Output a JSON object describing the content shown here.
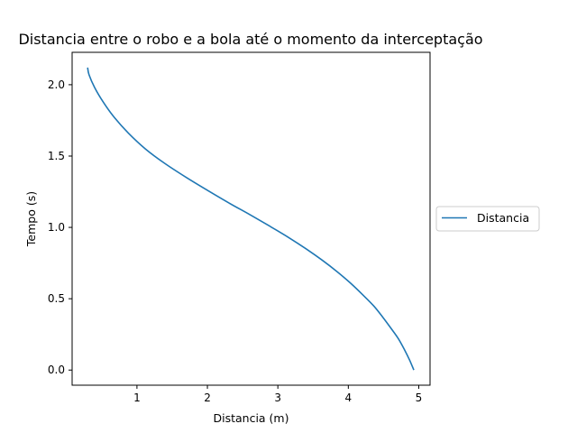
{
  "chart_data": {
    "type": "line",
    "title": "Distancia entre o robo e a bola até o momento da interceptação",
    "xlabel": "Distancia (m)",
    "ylabel": "Tempo (s)",
    "xlim": [
      0.08,
      5.16
    ],
    "ylim": [
      -0.106,
      2.227
    ],
    "xticks": [
      1,
      2,
      3,
      4,
      5
    ],
    "yticks": [
      0.0,
      0.5,
      1.0,
      1.5,
      2.0
    ],
    "xtick_labels": [
      "1",
      "2",
      "3",
      "4",
      "5"
    ],
    "ytick_labels": [
      "0.0",
      "0.5",
      "1.0",
      "1.5",
      "2.0"
    ],
    "grid": false,
    "legend": {
      "placement": "right-outside",
      "entries": [
        "Distancia"
      ]
    },
    "colors": {
      "series": "#1f77b4"
    },
    "series": [
      {
        "name": "Distancia",
        "x": [
          4.93,
          4.87,
          4.8,
          4.71,
          4.61,
          4.49,
          4.36,
          4.2,
          4.03,
          3.84,
          3.63,
          3.4,
          3.15,
          2.88,
          2.6,
          2.31,
          2.0,
          1.7,
          1.39,
          1.12,
          0.88,
          0.68,
          0.52,
          0.4,
          0.32,
          0.3
        ],
        "y": [
          0.0,
          0.07,
          0.14,
          0.22,
          0.29,
          0.37,
          0.45,
          0.53,
          0.61,
          0.69,
          0.77,
          0.85,
          0.93,
          1.01,
          1.09,
          1.17,
          1.26,
          1.35,
          1.45,
          1.55,
          1.66,
          1.77,
          1.88,
          1.98,
          2.07,
          2.12
        ]
      }
    ]
  }
}
